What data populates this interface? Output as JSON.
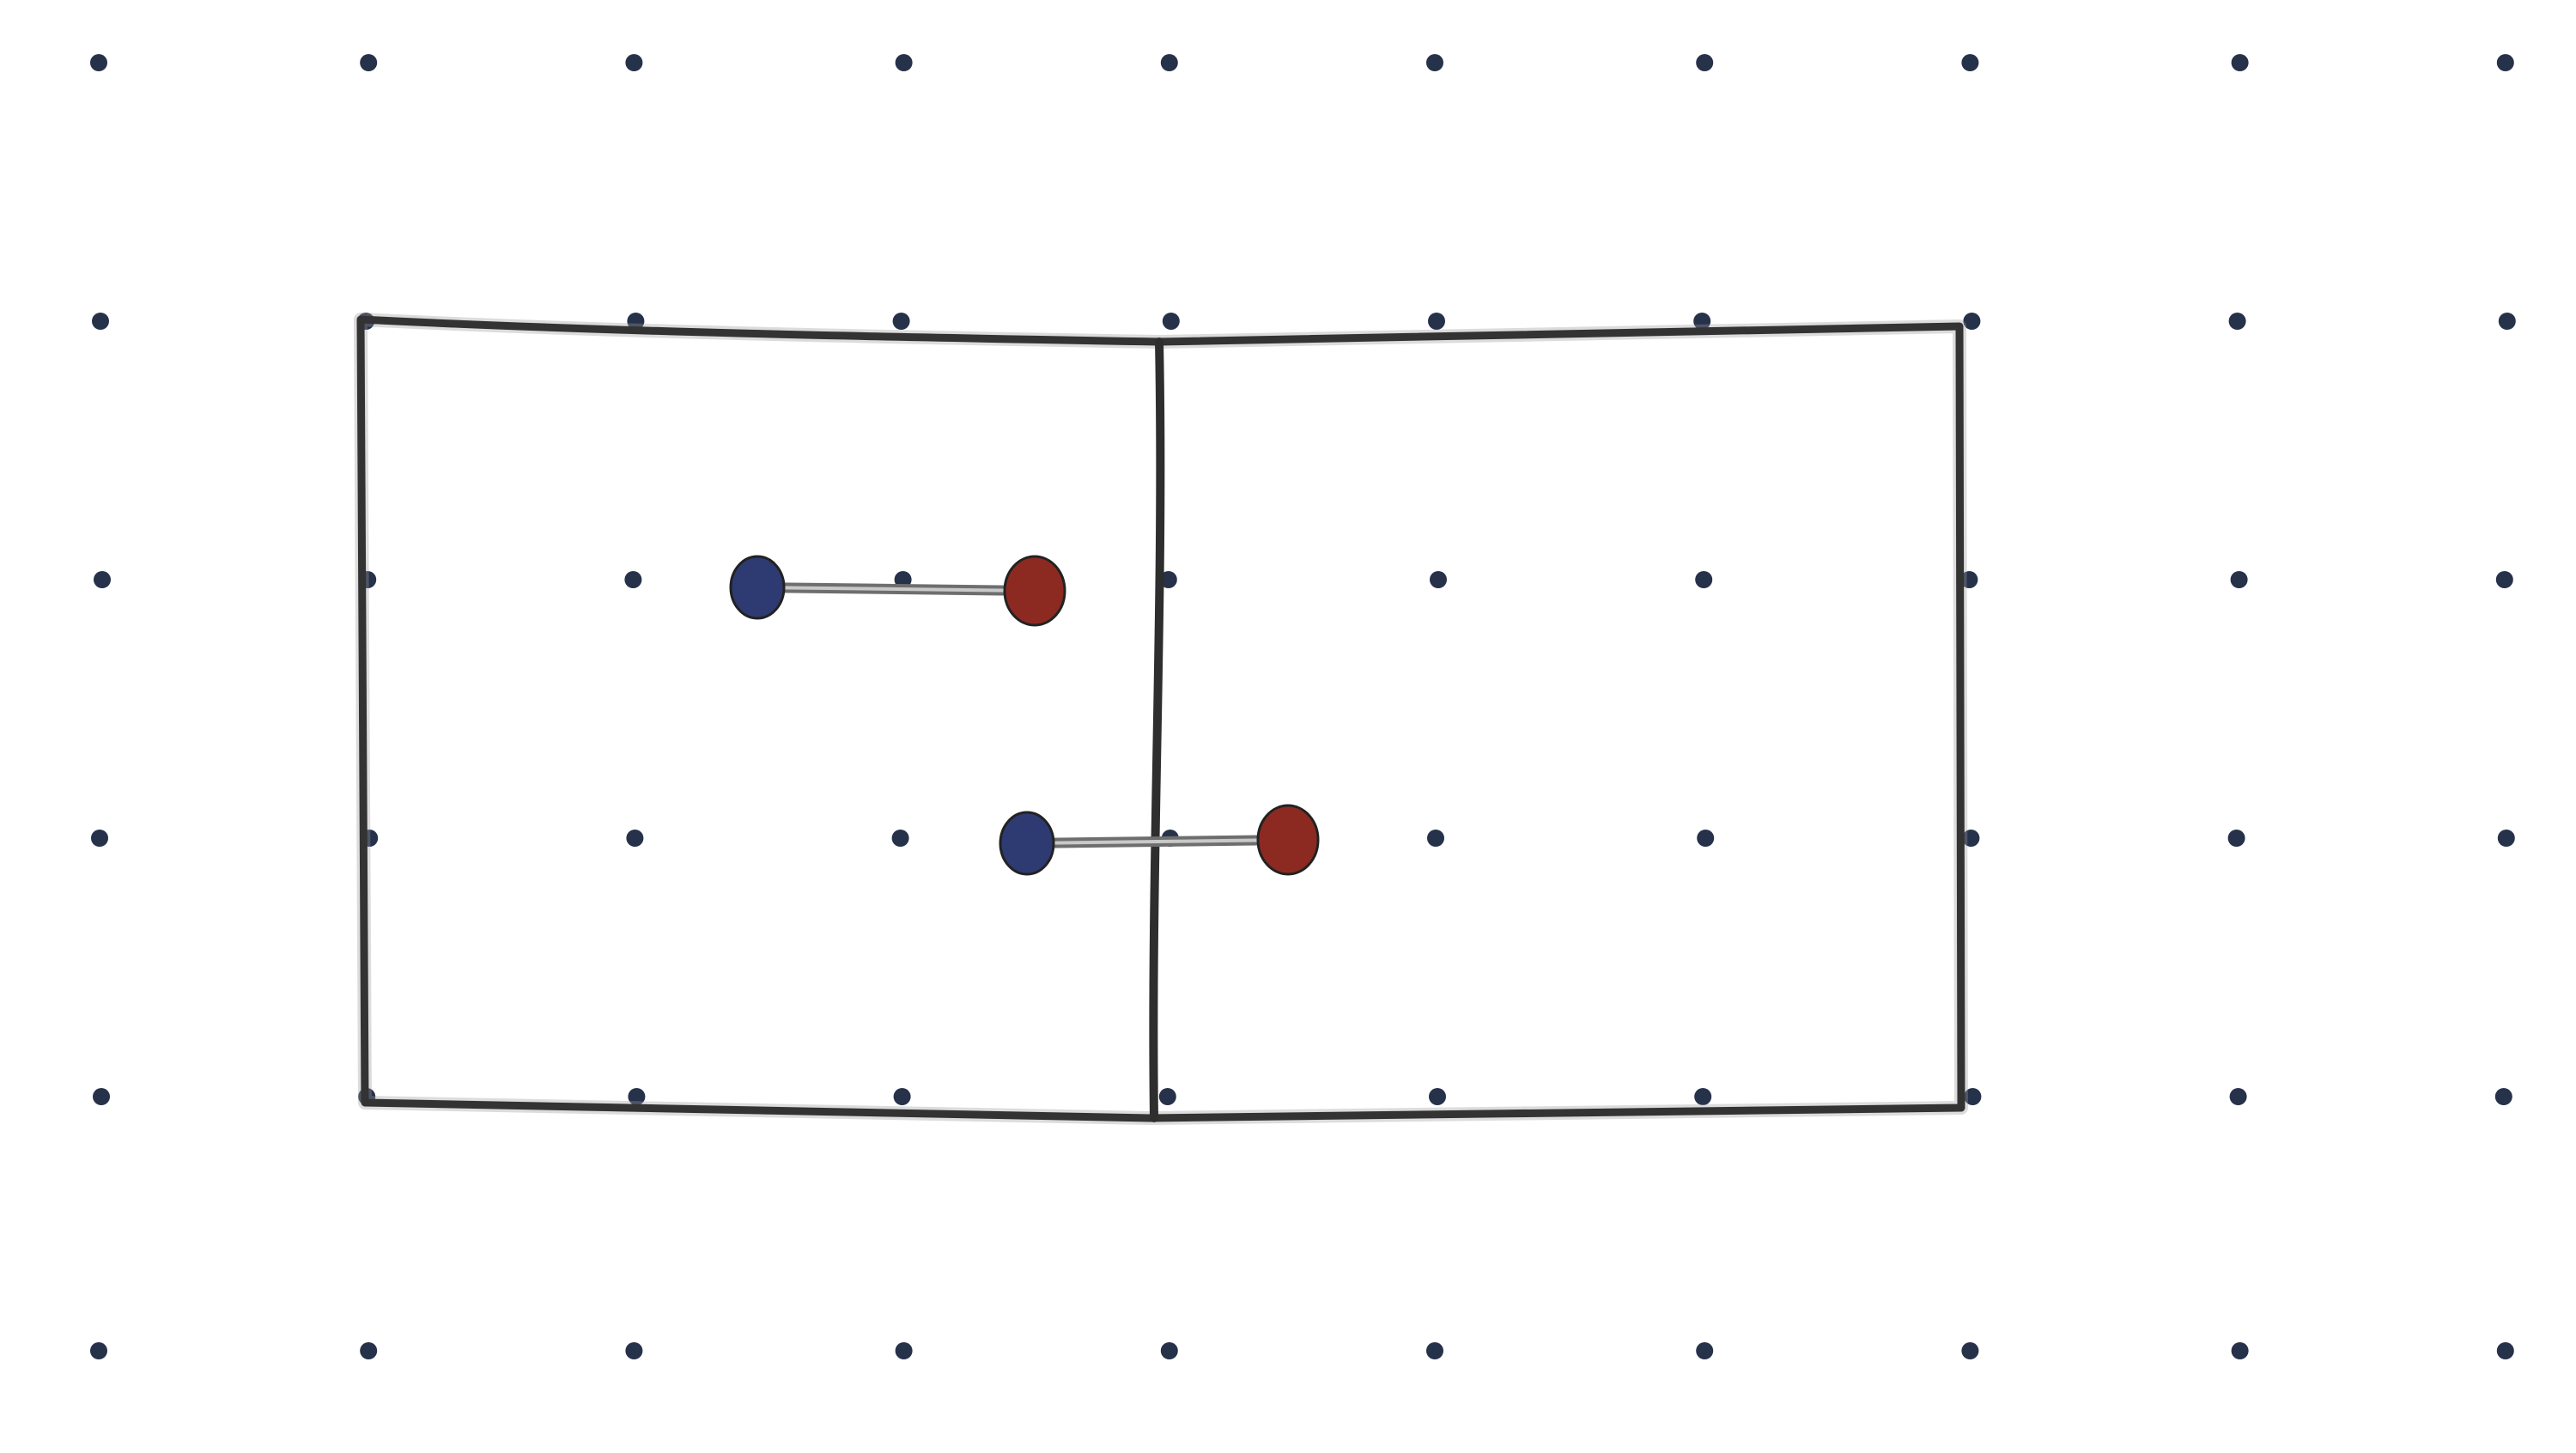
{
  "diagram": {
    "grid": {
      "columns": 10,
      "rows": 6
    },
    "box": {
      "cells_across": 2,
      "cells_down": 1,
      "grid_units_per_cell": 3
    },
    "molecules": [
      {
        "id": "pair-left-cell",
        "from": {
          "color": "blue"
        },
        "to": {
          "color": "red"
        }
      },
      {
        "id": "pair-crossing-divider",
        "from": {
          "color": "blue"
        },
        "to": {
          "color": "red"
        }
      }
    ],
    "colors": {
      "background": "#ffffff",
      "grid_dot": "#26314a",
      "outline": "#333333",
      "bond": "#6e6e6e",
      "blue_atom": "#2e3a72",
      "red_atom": "#8c2a22"
    }
  }
}
